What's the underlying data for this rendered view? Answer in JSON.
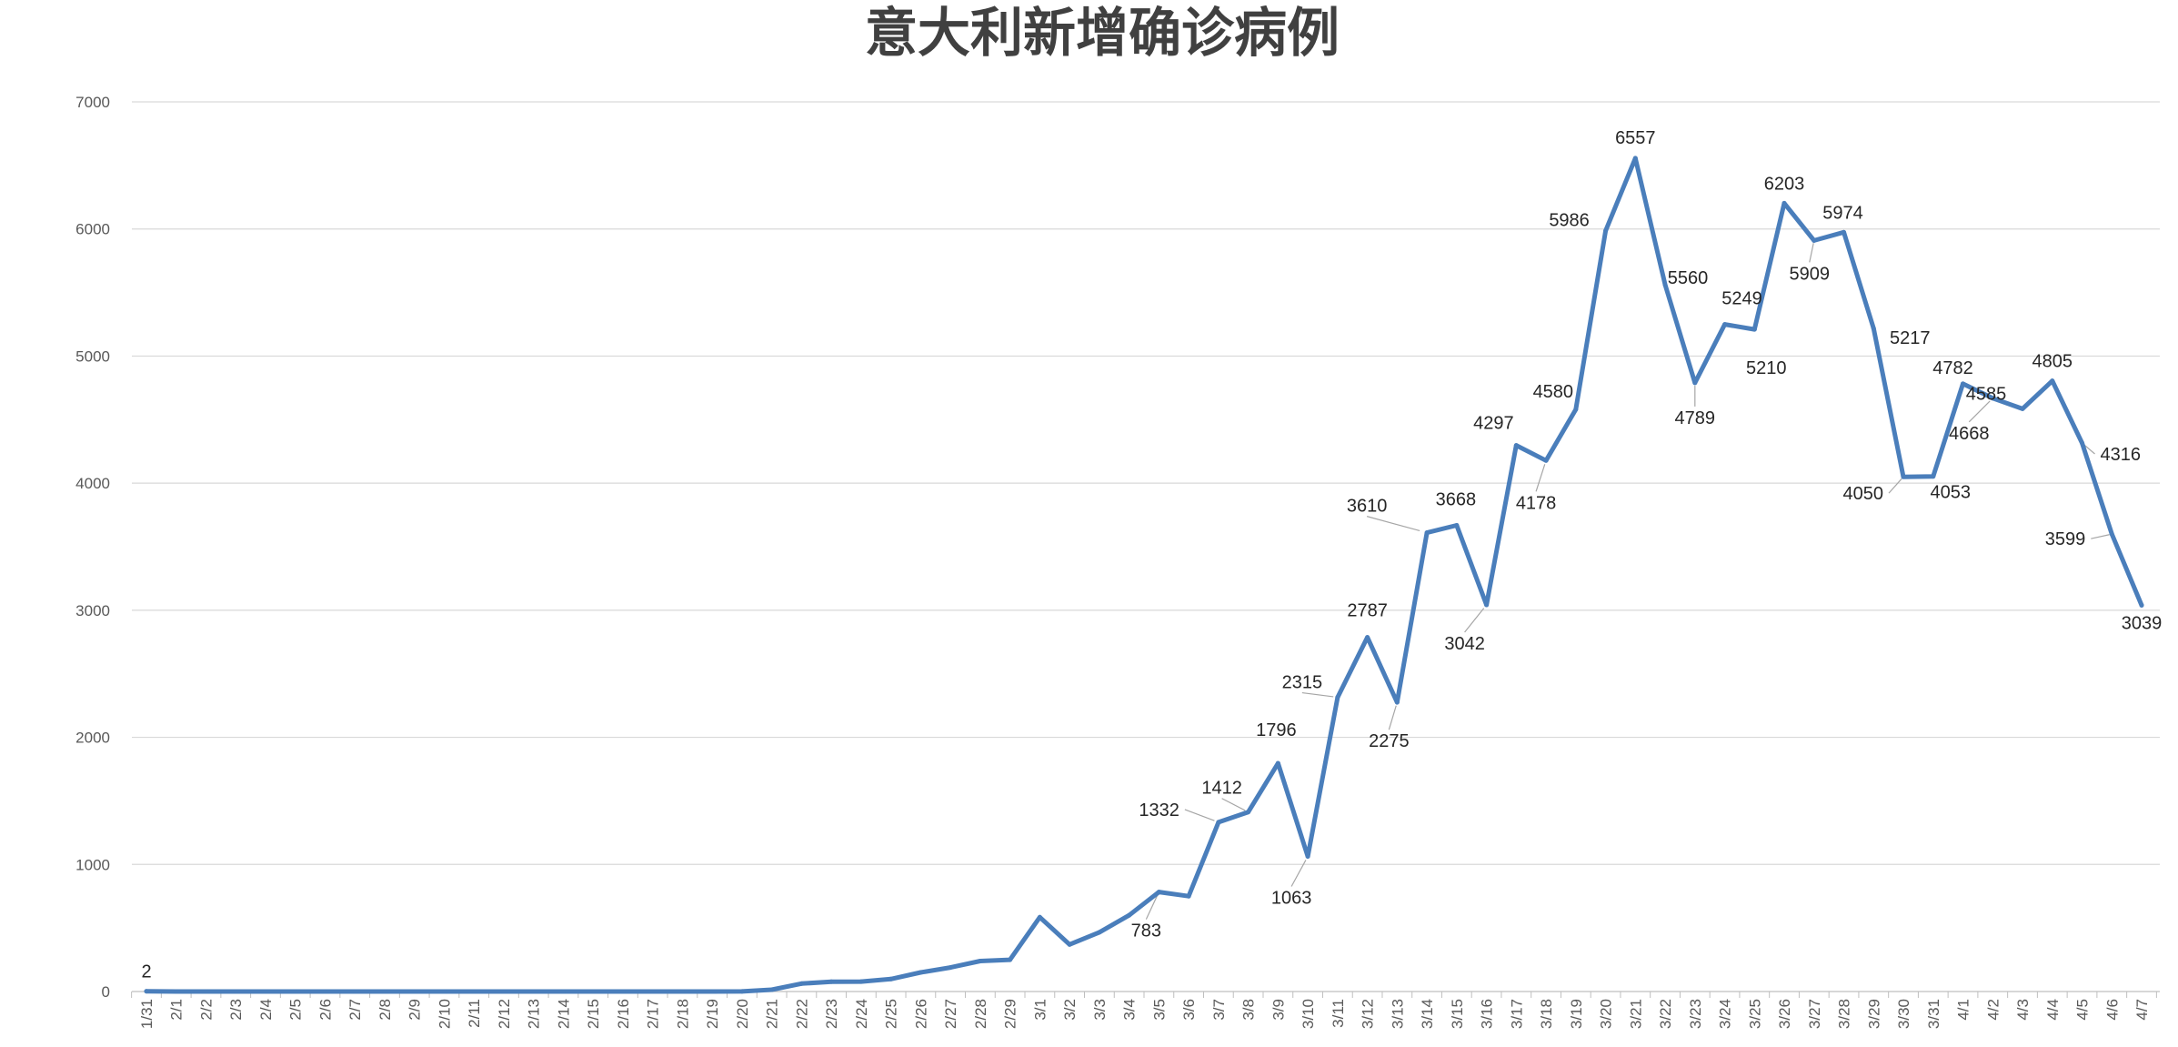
{
  "chart_data": {
    "type": "line",
    "title": "意大利新增确诊病例",
    "xlabel": "",
    "ylabel": "",
    "ylim": [
      0,
      7000
    ],
    "yticks": [
      0,
      1000,
      2000,
      3000,
      4000,
      5000,
      6000,
      7000
    ],
    "grid": true,
    "legend": "none",
    "color": "#4a7ebb",
    "categories": [
      "1/31",
      "2/1",
      "2/2",
      "2/3",
      "2/4",
      "2/5",
      "2/6",
      "2/7",
      "2/8",
      "2/9",
      "2/10",
      "2/11",
      "2/12",
      "2/13",
      "2/14",
      "2/15",
      "2/16",
      "2/17",
      "2/18",
      "2/19",
      "2/20",
      "2/21",
      "2/22",
      "2/23",
      "2/24",
      "2/25",
      "2/26",
      "2/27",
      "2/28",
      "2/29",
      "3/1",
      "3/2",
      "3/3",
      "3/4",
      "3/5",
      "3/6",
      "3/7",
      "3/8",
      "3/9",
      "3/10",
      "3/11",
      "3/12",
      "3/13",
      "3/14",
      "3/15",
      "3/16",
      "3/17",
      "3/18",
      "3/19",
      "3/20",
      "3/21",
      "3/22",
      "3/23",
      "3/24",
      "3/25",
      "3/26",
      "3/27",
      "3/28",
      "3/29",
      "3/30",
      "3/31",
      "4/1",
      "4/2",
      "4/3",
      "4/4",
      "4/5",
      "4/6",
      "4/7"
    ],
    "values": [
      2,
      0,
      0,
      0,
      0,
      0,
      0,
      0,
      0,
      0,
      0,
      0,
      0,
      0,
      0,
      0,
      0,
      0,
      0,
      0,
      1,
      14,
      62,
      77,
      78,
      98,
      150,
      189,
      240,
      250,
      585,
      370,
      466,
      600,
      783,
      750,
      1332,
      1412,
      1796,
      1063,
      2315,
      2787,
      2275,
      3610,
      3668,
      3042,
      4297,
      4178,
      4580,
      5986,
      6557,
      5560,
      4789,
      5249,
      5210,
      6203,
      5909,
      5974,
      5217,
      4050,
      4053,
      4782,
      4668,
      4585,
      4805,
      4316,
      3599,
      3039
    ],
    "data_labels": [
      {
        "category": "1/31",
        "text": "2"
      },
      {
        "category": "3/5",
        "text": "783"
      },
      {
        "category": "3/7",
        "text": "1332"
      },
      {
        "category": "3/8",
        "text": "1412"
      },
      {
        "category": "3/9",
        "text": "1796"
      },
      {
        "category": "3/10",
        "text": "1063"
      },
      {
        "category": "3/11",
        "text": "2315"
      },
      {
        "category": "3/12",
        "text": "2787"
      },
      {
        "category": "3/13",
        "text": "2275"
      },
      {
        "category": "3/14",
        "text": "3610"
      },
      {
        "category": "3/15",
        "text": "3668"
      },
      {
        "category": "3/16",
        "text": "3042"
      },
      {
        "category": "3/17",
        "text": "4297"
      },
      {
        "category": "3/18",
        "text": "4178"
      },
      {
        "category": "3/19",
        "text": "4580"
      },
      {
        "category": "3/20",
        "text": "5986"
      },
      {
        "category": "3/21",
        "text": "6557"
      },
      {
        "category": "3/22",
        "text": "5560"
      },
      {
        "category": "3/23",
        "text": "4789"
      },
      {
        "category": "3/24",
        "text": "5249"
      },
      {
        "category": "3/25",
        "text": "5210"
      },
      {
        "category": "3/26",
        "text": "6203"
      },
      {
        "category": "3/27",
        "text": "5909"
      },
      {
        "category": "3/28",
        "text": "5974"
      },
      {
        "category": "3/29",
        "text": "5217"
      },
      {
        "category": "3/30",
        "text": "4050"
      },
      {
        "category": "3/31",
        "text": "4053"
      },
      {
        "category": "4/1",
        "text": "4782"
      },
      {
        "category": "4/2",
        "text": "4668"
      },
      {
        "category": "4/3",
        "text": "4585"
      },
      {
        "category": "4/4",
        "text": "4805"
      },
      {
        "category": "4/5",
        "text": "4316"
      },
      {
        "category": "4/6",
        "text": "3599"
      },
      {
        "category": "4/7",
        "text": "3039"
      }
    ]
  }
}
